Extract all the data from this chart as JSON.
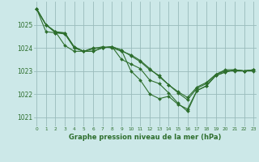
{
  "title": "Graphe pression niveau de la mer (hPa)",
  "bg_color": "#cce8e8",
  "grid_color": "#99bbbb",
  "line_color": "#2d6e2d",
  "marker_color": "#2d6e2d",
  "ylim": [
    1020.6,
    1026.0
  ],
  "yticks": [
    1021,
    1022,
    1023,
    1024,
    1025
  ],
  "xlim": [
    -0.3,
    23.3
  ],
  "xticks": [
    0,
    1,
    2,
    3,
    4,
    5,
    6,
    7,
    8,
    9,
    10,
    11,
    12,
    13,
    14,
    15,
    16,
    17,
    18,
    19,
    20,
    21,
    22,
    23
  ],
  "series": [
    [
      1025.7,
      1025.0,
      1024.7,
      1024.1,
      1023.85,
      1023.85,
      1023.95,
      1024.05,
      1024.0,
      1023.85,
      1023.7,
      1023.45,
      1023.1,
      1022.75,
      1022.4,
      1022.1,
      1021.85,
      1022.3,
      1022.5,
      1022.85,
      1023.05,
      1023.05,
      1023.0,
      1023.05
    ],
    [
      1025.7,
      1025.0,
      1024.7,
      1024.65,
      1024.05,
      1023.85,
      1023.85,
      1024.0,
      1024.05,
      1023.9,
      1023.65,
      1023.4,
      1023.05,
      1022.8,
      1022.4,
      1022.05,
      1021.75,
      1022.25,
      1022.45,
      1022.85,
      1023.0,
      1023.0,
      1023.0,
      1023.0
    ],
    [
      1025.7,
      1024.7,
      1024.65,
      1024.6,
      1024.0,
      1023.85,
      1024.0,
      1024.0,
      1024.05,
      1023.5,
      1023.3,
      1023.1,
      1022.6,
      1022.45,
      1022.05,
      1021.6,
      1021.25,
      1022.15,
      1022.35,
      1022.8,
      1022.95,
      1023.05,
      1023.0,
      1023.05
    ],
    [
      1025.7,
      1025.0,
      1024.65,
      1024.65,
      1024.0,
      1023.85,
      1023.85,
      1024.0,
      1024.05,
      1023.9,
      1023.0,
      1022.6,
      1022.0,
      1021.8,
      1021.9,
      1021.55,
      1021.35,
      1022.15,
      1022.35,
      1022.8,
      1022.95,
      1023.05,
      1023.0,
      1023.05
    ]
  ]
}
